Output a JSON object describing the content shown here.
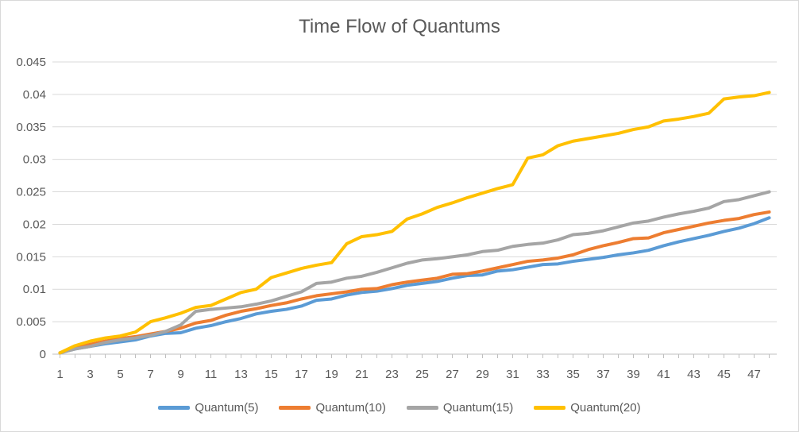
{
  "chart_data": {
    "type": "line",
    "title": "Time Flow of Quantums",
    "xlabel": "",
    "ylabel": "",
    "x": [
      1,
      2,
      3,
      4,
      5,
      6,
      7,
      8,
      9,
      10,
      11,
      12,
      13,
      14,
      15,
      16,
      17,
      18,
      19,
      20,
      21,
      22,
      23,
      24,
      25,
      26,
      27,
      28,
      29,
      30,
      31,
      32,
      33,
      34,
      35,
      36,
      37,
      38,
      39,
      40,
      41,
      42,
      43,
      44,
      45,
      46,
      47,
      48
    ],
    "x_tick_labels": [
      "1",
      "3",
      "5",
      "7",
      "9",
      "11",
      "13",
      "15",
      "17",
      "19",
      "21",
      "23",
      "25",
      "27",
      "29",
      "31",
      "33",
      "35",
      "37",
      "39",
      "41",
      "43",
      "45",
      "47"
    ],
    "y_tick_labels": [
      "0",
      "0.005",
      "0.01",
      "0.015",
      "0.02",
      "0.025",
      "0.03",
      "0.035",
      "0.04",
      "0.045"
    ],
    "ylim": [
      0,
      0.045
    ],
    "grid": true,
    "legend_position": "bottom",
    "series": [
      {
        "name": "Quantum(5)",
        "color": "#5B9BD5",
        "values": [
          0.0002,
          0.0008,
          0.0012,
          0.0016,
          0.0019,
          0.0022,
          0.0028,
          0.0032,
          0.0033,
          0.004,
          0.0044,
          0.005,
          0.0055,
          0.0062,
          0.0066,
          0.0069,
          0.0074,
          0.0083,
          0.0085,
          0.0091,
          0.0095,
          0.0097,
          0.0101,
          0.0106,
          0.0109,
          0.0112,
          0.0117,
          0.0121,
          0.0122,
          0.0128,
          0.013,
          0.0134,
          0.0138,
          0.0139,
          0.0143,
          0.0146,
          0.0149,
          0.0153,
          0.0156,
          0.016,
          0.0167,
          0.0173,
          0.0178,
          0.0183,
          0.0189,
          0.0194,
          0.0201,
          0.021
        ]
      },
      {
        "name": "Quantum(10)",
        "color": "#ED7D31",
        "values": [
          0.0002,
          0.001,
          0.0015,
          0.002,
          0.0024,
          0.0027,
          0.0031,
          0.0035,
          0.004,
          0.0048,
          0.0052,
          0.006,
          0.0066,
          0.007,
          0.0075,
          0.0079,
          0.0085,
          0.009,
          0.0093,
          0.0096,
          0.01,
          0.0101,
          0.0107,
          0.0111,
          0.0114,
          0.0117,
          0.0123,
          0.0124,
          0.0128,
          0.0133,
          0.0138,
          0.0143,
          0.0145,
          0.0148,
          0.0153,
          0.0161,
          0.0167,
          0.0172,
          0.0178,
          0.0179,
          0.0187,
          0.0192,
          0.0197,
          0.0202,
          0.0206,
          0.0209,
          0.0215,
          0.0219
        ]
      },
      {
        "name": "Quantum(15)",
        "color": "#A5A5A5",
        "values": [
          0.0002,
          0.0008,
          0.0012,
          0.0018,
          0.0022,
          0.0025,
          0.0029,
          0.0035,
          0.0045,
          0.0066,
          0.0069,
          0.0071,
          0.0073,
          0.0077,
          0.0082,
          0.0089,
          0.0096,
          0.0109,
          0.0111,
          0.0117,
          0.012,
          0.0126,
          0.0133,
          0.014,
          0.0145,
          0.0147,
          0.015,
          0.0153,
          0.0158,
          0.016,
          0.0166,
          0.0169,
          0.0171,
          0.0176,
          0.0184,
          0.0186,
          0.019,
          0.0196,
          0.0202,
          0.0205,
          0.0211,
          0.0216,
          0.022,
          0.0225,
          0.0235,
          0.0238,
          0.0244,
          0.025
        ]
      },
      {
        "name": "Quantum(20)",
        "color": "#FFC000",
        "values": [
          0.0002,
          0.0013,
          0.002,
          0.0025,
          0.0028,
          0.0034,
          0.005,
          0.0056,
          0.0063,
          0.0072,
          0.0075,
          0.0085,
          0.0095,
          0.01,
          0.0118,
          0.0125,
          0.0132,
          0.0137,
          0.0141,
          0.017,
          0.0181,
          0.0184,
          0.0189,
          0.0208,
          0.0216,
          0.0226,
          0.0233,
          0.0241,
          0.0248,
          0.0255,
          0.0261,
          0.0302,
          0.0307,
          0.0321,
          0.0328,
          0.0332,
          0.0336,
          0.034,
          0.0346,
          0.035,
          0.0359,
          0.0362,
          0.0366,
          0.0371,
          0.0393,
          0.0396,
          0.0398,
          0.0403
        ]
      }
    ]
  }
}
